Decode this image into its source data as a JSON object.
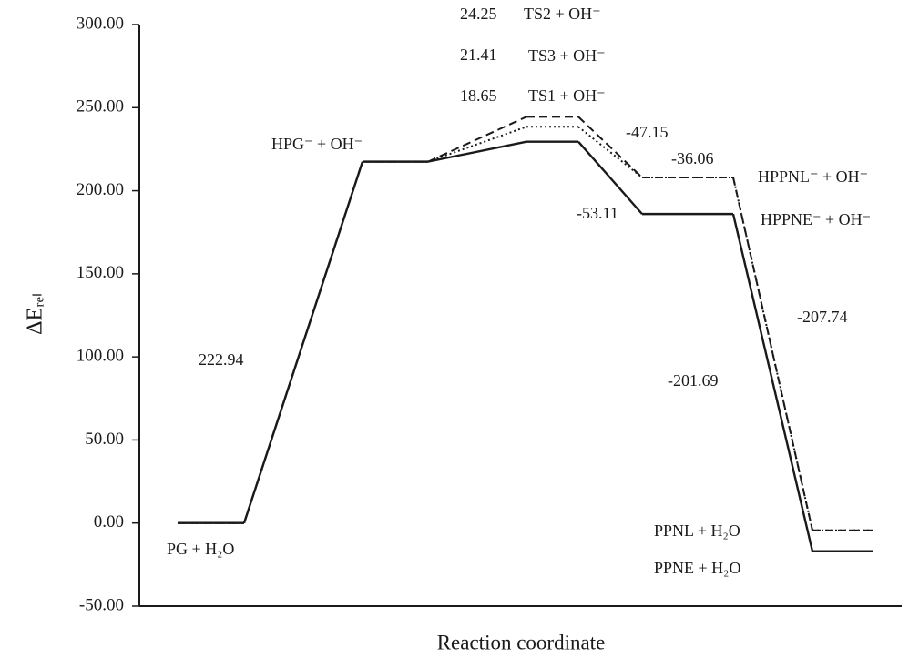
{
  "chart_data": {
    "type": "energy-profile",
    "y_label": "ΔEᵣₑₗ",
    "x_label": "Reaction coordinate",
    "categories": [
      null,
      null,
      null,
      null,
      null
    ],
    "series": [
      {
        "color": "#1a1a1a",
        "linestyle": "solid",
        "values": [
          0,
          217.5,
          229.5,
          186,
          -17
        ]
      },
      {
        "color": "#1a1a1a",
        "linestyle": "dotted",
        "values": [
          0,
          217.5,
          238.5,
          208,
          -4.4
        ]
      },
      {
        "color": "#1a1a1a",
        "linestyle": "dashed",
        "values": [
          0,
          217.5,
          244.5,
          208,
          -4.4
        ]
      }
    ],
    "ylim": [
      -50,
      300
    ],
    "yticks": [
      {
        "value": -50,
        "label": "-50.00"
      },
      {
        "value": 0,
        "label": "0.00"
      },
      {
        "value": 50,
        "label": "50.00"
      },
      {
        "value": 100,
        "label": "100.00"
      },
      {
        "value": 150,
        "label": "150.00"
      },
      {
        "value": 200,
        "label": "200.00"
      },
      {
        "value": 250,
        "label": "250.00"
      },
      {
        "value": 300,
        "label": "300.00"
      }
    ],
    "annotations": [
      "24.25",
      "TS2 + OH⁻",
      "21.41",
      "TS3 + OH⁻",
      "18.65",
      "TS1 + OH⁻",
      "HPG⁻ + OH⁻",
      "-47.15",
      "-36.06",
      "HPPNL⁻ + OH⁻",
      "-53.11",
      "HPPNE⁻ + OH⁻",
      "-207.74",
      "222.94",
      "-201.69",
      "PPNL + H₂O",
      "PG + H₂O",
      "PPNE + H₂O"
    ]
  }
}
